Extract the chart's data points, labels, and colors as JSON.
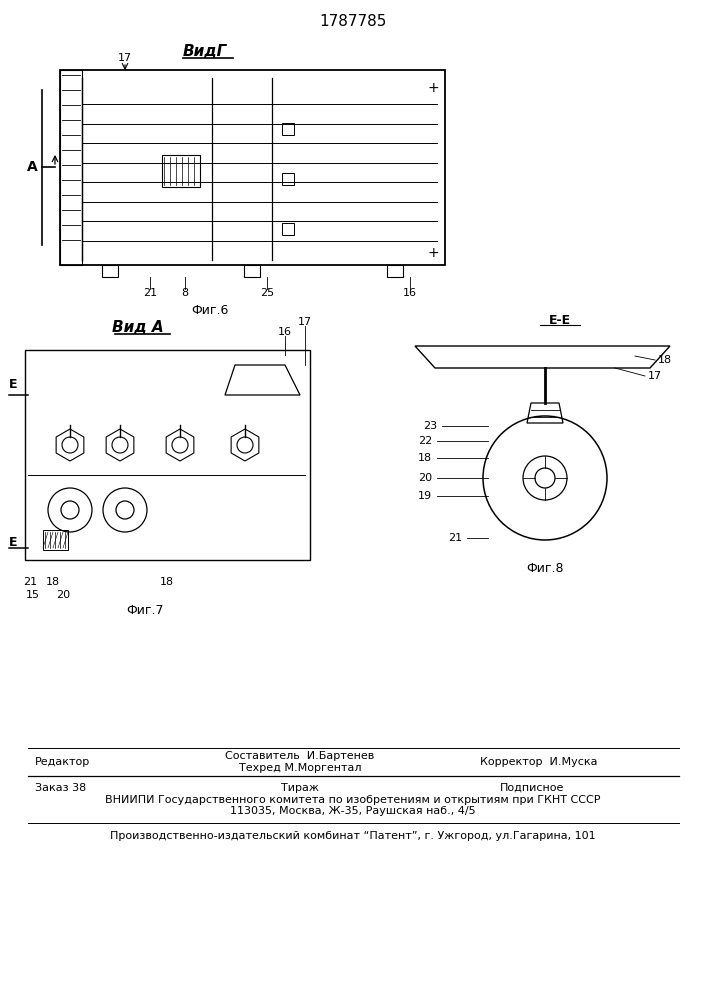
{
  "patent_number": "1787785",
  "background_color": "#ffffff",
  "fig_width": 7.07,
  "fig_height": 10.0,
  "dpi": 100,
  "top_label": "ВидГ",
  "mid_label": "Вид А",
  "fig_b_label": "Фиг.6",
  "fig_7_label": "Фиг.7",
  "fig_8_label": "Фиг.8",
  "ee_label": "E-E",
  "footer_line1_left": "Редактор",
  "footer_line1_center_top": "Составитель  И.Бартенев",
  "footer_line1_center_bot": "Техред М.Моргентал",
  "footer_line1_right": "Корректор  И.Муска",
  "footer_line2_left": "Заказ 38",
  "footer_line2_center": "Тираж",
  "footer_line2_right": "Подписное",
  "footer_line3": "ВНИИПИ Государственного комитета по изобретениям и открытиям при ГКНТ СССР",
  "footer_line4": "113035, Москва, Ж-35, Раушская наб., 4/5",
  "footer_line5": "Производственно-издательский комбинат “Патент”, г. Ужгород, ул.Гагарина, 101"
}
